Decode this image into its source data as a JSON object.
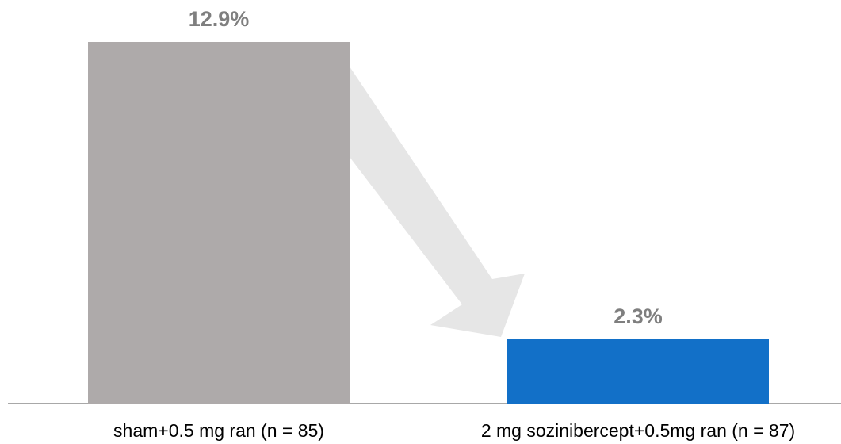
{
  "chart_data": {
    "type": "bar",
    "categories": [
      "sham+0.5 mg ran (n = 85)",
      "2 mg sozinibercept+0.5mg ran (n = 87)"
    ],
    "values": [
      12.9,
      2.3
    ],
    "value_labels": [
      "12.9%",
      "2.3%"
    ],
    "colors": [
      "#aeaaaa",
      "#1270c8"
    ]
  }
}
